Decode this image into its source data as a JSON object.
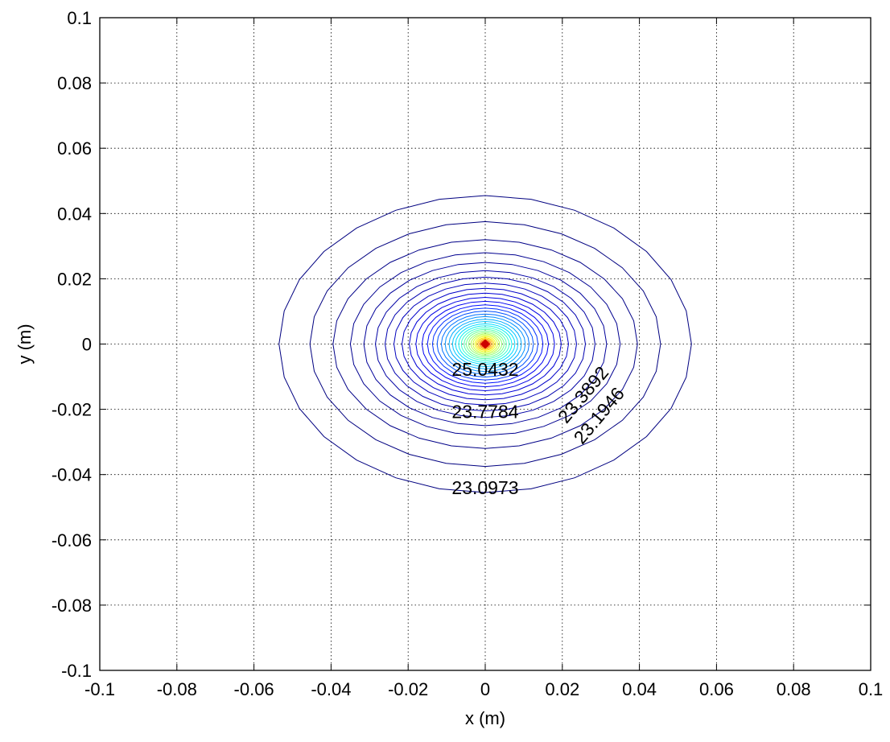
{
  "chart_data": {
    "type": "contour",
    "title": "",
    "xlabel": "x (m)",
    "ylabel": "y (m)",
    "xlim": [
      -0.1,
      0.1
    ],
    "ylim": [
      -0.1,
      0.1
    ],
    "xticks": [
      -0.1,
      -0.08,
      -0.06,
      -0.04,
      -0.02,
      0,
      0.02,
      0.04,
      0.06,
      0.08,
      0.1
    ],
    "yticks": [
      -0.1,
      -0.08,
      -0.06,
      -0.04,
      -0.02,
      0,
      0.02,
      0.04,
      0.06,
      0.08,
      0.1
    ],
    "xtick_labels": [
      "-0.1",
      "-0.08",
      "-0.06",
      "-0.04",
      "-0.02",
      "0",
      "0.02",
      "0.04",
      "0.06",
      "0.08",
      "0.1"
    ],
    "ytick_labels": [
      "-0.1",
      "-0.08",
      "-0.06",
      "-0.04",
      "-0.02",
      "0",
      "0.02",
      "0.04",
      "0.06",
      "0.08",
      "0.1"
    ],
    "grid": true,
    "grid_style": "dotted",
    "center": [
      0,
      0
    ],
    "peak_color": "#cc0000",
    "colormap": "jet",
    "contour_levels": [
      {
        "rx": 0.0535,
        "ry": 0.0455,
        "color": "#000080"
      },
      {
        "rx": 0.0455,
        "ry": 0.0375,
        "color": "#000080"
      },
      {
        "rx": 0.0395,
        "ry": 0.032,
        "color": "#000088"
      },
      {
        "rx": 0.035,
        "ry": 0.028,
        "color": "#000090"
      },
      {
        "rx": 0.0315,
        "ry": 0.025,
        "color": "#00009a"
      },
      {
        "rx": 0.0285,
        "ry": 0.0225,
        "color": "#0000a4"
      },
      {
        "rx": 0.026,
        "ry": 0.0205,
        "color": "#0000b0"
      },
      {
        "rx": 0.0237,
        "ry": 0.0187,
        "color": "#0000bc"
      },
      {
        "rx": 0.0216,
        "ry": 0.0171,
        "color": "#0000c8"
      },
      {
        "rx": 0.0197,
        "ry": 0.0156,
        "color": "#0000d6"
      },
      {
        "rx": 0.018,
        "ry": 0.0143,
        "color": "#0000e4"
      },
      {
        "rx": 0.0164,
        "ry": 0.0131,
        "color": "#0000f2"
      },
      {
        "rx": 0.015,
        "ry": 0.012,
        "color": "#0010ff"
      },
      {
        "rx": 0.0137,
        "ry": 0.011,
        "color": "#0030ff"
      },
      {
        "rx": 0.0125,
        "ry": 0.0101,
        "color": "#0050ff"
      },
      {
        "rx": 0.0114,
        "ry": 0.0092,
        "color": "#0070ff"
      },
      {
        "rx": 0.0104,
        "ry": 0.0084,
        "color": "#0090ff"
      },
      {
        "rx": 0.0094,
        "ry": 0.0076,
        "color": "#00aaff"
      },
      {
        "rx": 0.0085,
        "ry": 0.0069,
        "color": "#00c4ff"
      },
      {
        "rx": 0.0077,
        "ry": 0.0062,
        "color": "#00dcff"
      },
      {
        "rx": 0.0069,
        "ry": 0.0056,
        "color": "#10f0f0"
      },
      {
        "rx": 0.0062,
        "ry": 0.005,
        "color": "#30ffd0"
      },
      {
        "rx": 0.0055,
        "ry": 0.0045,
        "color": "#50ffb0"
      },
      {
        "rx": 0.0049,
        "ry": 0.004,
        "color": "#70ff90"
      },
      {
        "rx": 0.0043,
        "ry": 0.0035,
        "color": "#90ff70"
      },
      {
        "rx": 0.0037,
        "ry": 0.0031,
        "color": "#b0ff50"
      },
      {
        "rx": 0.0032,
        "ry": 0.0027,
        "color": "#d0ff30"
      },
      {
        "rx": 0.0027,
        "ry": 0.0023,
        "color": "#f0ff10"
      },
      {
        "rx": 0.0023,
        "ry": 0.0019,
        "color": "#ffe000"
      },
      {
        "rx": 0.0019,
        "ry": 0.0016,
        "color": "#ffc000"
      },
      {
        "rx": 0.0015,
        "ry": 0.0013,
        "color": "#ff9000"
      },
      {
        "rx": 0.0012,
        "ry": 0.001,
        "color": "#ff6000"
      },
      {
        "rx": 0.0009,
        "ry": 0.0008,
        "color": "#ff3000"
      },
      {
        "rx": 0.0006,
        "ry": 0.0005,
        "color": "#ee0000"
      }
    ],
    "annotations": [
      {
        "text": "25.0432",
        "x": 0.0,
        "y": -0.0082,
        "rotate": 0
      },
      {
        "text": "23.7784",
        "x": 0.0,
        "y": -0.0212,
        "rotate": 0
      },
      {
        "text": "23.0973",
        "x": 0.0,
        "y": -0.0445,
        "rotate": 0
      },
      {
        "text": "23.3892",
        "x": 0.0257,
        "y": -0.0158,
        "rotate": -50
      },
      {
        "text": "23.1946",
        "x": 0.0298,
        "y": -0.0222,
        "rotate": -50
      }
    ]
  }
}
